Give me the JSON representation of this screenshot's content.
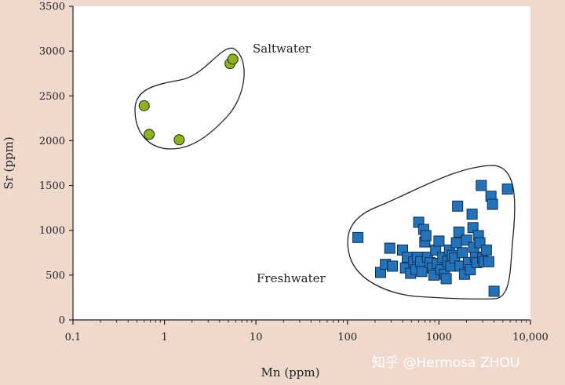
{
  "chart_data": {
    "type": "scatter",
    "xlabel": "Mn (ppm)",
    "ylabel": "Sr (ppm)",
    "x_scale": "log",
    "xlim": [
      0.1,
      10000
    ],
    "ylim": [
      0,
      3500
    ],
    "x_ticks": [
      0.1,
      1,
      10,
      100,
      1000,
      10000
    ],
    "x_tick_labels": [
      "0.1",
      "1",
      "10",
      "100",
      "1000",
      "10,000"
    ],
    "y_ticks": [
      0,
      500,
      1000,
      1500,
      2000,
      2500,
      3000,
      3500
    ],
    "y_tick_labels": [
      "0",
      "500",
      "1000",
      "1500",
      "2000",
      "2500",
      "3000",
      "3500"
    ],
    "grid": false,
    "series": [
      {
        "name": "Saltwater",
        "marker": "circle",
        "color": "#8bb31d",
        "points": [
          [
            0.6,
            2390
          ],
          [
            0.68,
            2070
          ],
          [
            1.45,
            2010
          ],
          [
            5.2,
            2860
          ],
          [
            5.6,
            2910
          ]
        ]
      },
      {
        "name": "Freshwater",
        "marker": "square",
        "color": "#2373b9",
        "points": [
          [
            130,
            920
          ],
          [
            230,
            530
          ],
          [
            260,
            620
          ],
          [
            290,
            800
          ],
          [
            310,
            600
          ],
          [
            400,
            780
          ],
          [
            430,
            580
          ],
          [
            450,
            700
          ],
          [
            490,
            520
          ],
          [
            530,
            650
          ],
          [
            560,
            560
          ],
          [
            580,
            700
          ],
          [
            600,
            1090
          ],
          [
            630,
            650
          ],
          [
            650,
            540
          ],
          [
            680,
            1010
          ],
          [
            700,
            870
          ],
          [
            720,
            940
          ],
          [
            750,
            700
          ],
          [
            800,
            640
          ],
          [
            850,
            580
          ],
          [
            880,
            500
          ],
          [
            920,
            780
          ],
          [
            960,
            630
          ],
          [
            1000,
            880
          ],
          [
            1050,
            560
          ],
          [
            1100,
            700
          ],
          [
            1150,
            510
          ],
          [
            1200,
            460
          ],
          [
            1250,
            650
          ],
          [
            1300,
            780
          ],
          [
            1350,
            600
          ],
          [
            1400,
            720
          ],
          [
            1480,
            690
          ],
          [
            1550,
            860
          ],
          [
            1600,
            1270
          ],
          [
            1650,
            980
          ],
          [
            1700,
            600
          ],
          [
            1800,
            750
          ],
          [
            1900,
            510
          ],
          [
            2000,
            890
          ],
          [
            2100,
            640
          ],
          [
            2200,
            560
          ],
          [
            2300,
            1180
          ],
          [
            2350,
            1030
          ],
          [
            2400,
            810
          ],
          [
            2500,
            700
          ],
          [
            2600,
            640
          ],
          [
            2700,
            940
          ],
          [
            2800,
            860
          ],
          [
            2900,
            1500
          ],
          [
            3000,
            690
          ],
          [
            3100,
            650
          ],
          [
            3300,
            780
          ],
          [
            3500,
            650
          ],
          [
            3700,
            1380
          ],
          [
            3850,
            1290
          ],
          [
            4000,
            320
          ],
          [
            5600,
            1460
          ]
        ]
      }
    ]
  },
  "labels": {
    "saltwater": "Saltwater",
    "freshwater": "Freshwater"
  },
  "watermark": "知乎 @Hermosa ZHOU"
}
